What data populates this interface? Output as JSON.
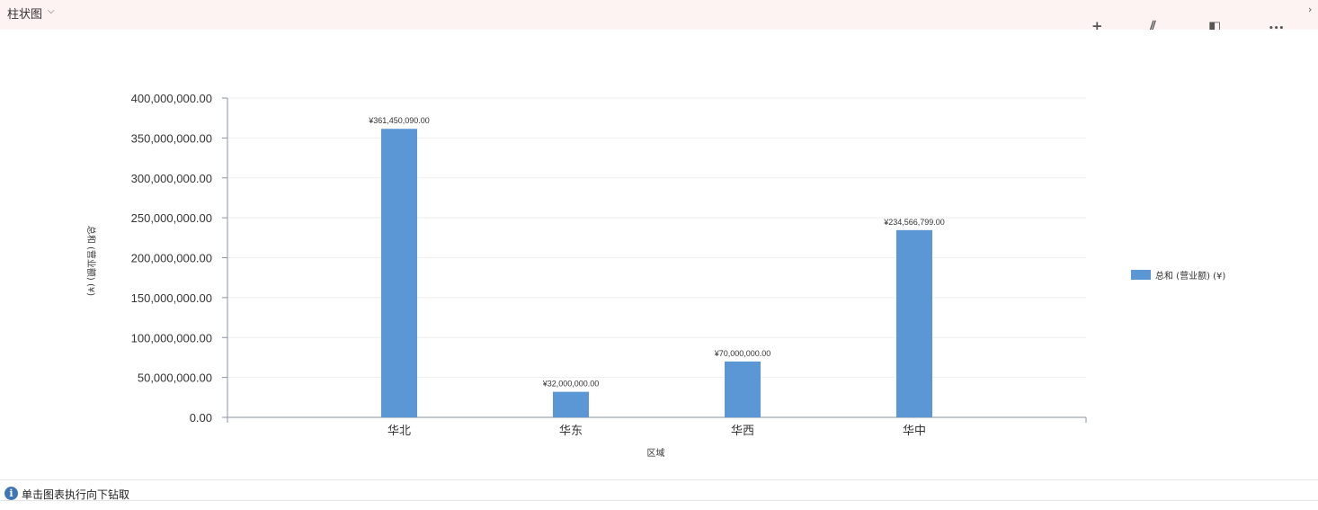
{
  "header": {
    "title": "柱状图",
    "dropdown_icon": "chevron-down-icon",
    "toolbar": [
      {
        "icon": "plus-icon",
        "glyph": "+"
      },
      {
        "icon": "drill-chart-icon",
        "glyph": "⫽"
      },
      {
        "icon": "focus-mode-icon",
        "glyph": "◧"
      },
      {
        "icon": "more-icon",
        "glyph": "•••"
      }
    ],
    "expand_icon": "chevron-right-icon"
  },
  "footer": {
    "icon": "info-icon",
    "text": "单击图表执行向下钻取"
  },
  "chart_data": {
    "type": "bar",
    "categories": [
      "华北",
      "华东",
      "华西",
      "华中"
    ],
    "series": [
      {
        "name": "总和 (营业额) (¥)",
        "values": [
          361450090,
          32000000,
          70000000,
          234566799
        ],
        "color": "#5b97d5"
      }
    ],
    "data_labels": [
      "¥361,450,090.00",
      "¥32,000,000.00",
      "¥70,000,000.00",
      "¥234,566,799.00"
    ],
    "xlabel": "区域",
    "ylabel": "总和 (营业额) (¥)",
    "ylim": [
      0,
      400000000
    ],
    "yticks": [
      "0.00",
      "50,000,000.00",
      "100,000,000.00",
      "150,000,000.00",
      "200,000,000.00",
      "250,000,000.00",
      "300,000,000.00",
      "350,000,000.00",
      "400,000,000.00"
    ],
    "grid": true,
    "legend": "right"
  }
}
